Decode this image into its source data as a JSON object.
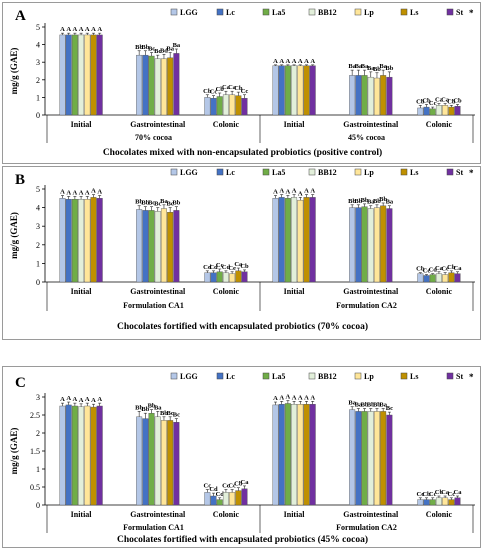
{
  "colors": {
    "LGG": "#b4c7e7",
    "Lc": "#4472c4",
    "La5": "#70ad47",
    "BB12": "#e2efda",
    "Lp": "#ffe699",
    "Ls": "#bf9000",
    "St": "#7030a0"
  },
  "chart_data": [
    {
      "type": "bar",
      "panel_letter": "A",
      "title": "Chocolates mixed with non-encapsulated probiotics (positive control)",
      "ylabel": "mg/g (GAE)",
      "ylim": [
        0,
        5
      ],
      "yticks": [
        "0",
        "1",
        "2",
        "3",
        "4",
        "5"
      ],
      "legend": [
        "LGG",
        "Lc",
        "La5",
        "BB12",
        "Lp",
        "Ls",
        "St"
      ],
      "legend_position": "top-right",
      "legend_marker": "*",
      "grid": false,
      "groups": [
        {
          "name": "70% cocoa",
          "subgroups": [
            {
              "name": "Initial",
              "values": [
                4.55,
                4.55,
                4.55,
                4.55,
                4.55,
                4.55,
                4.55
              ],
              "errors": [
                0.1,
                0.1,
                0.1,
                0.1,
                0.1,
                0.1,
                0.1
              ],
              "letters": [
                "A",
                "A",
                "A",
                "A",
                "A",
                "A",
                "A"
              ]
            },
            {
              "name": "Gastrointestinal",
              "values": [
                3.4,
                3.4,
                3.35,
                3.2,
                3.2,
                3.25,
                3.5
              ],
              "errors": [
                0.25,
                0.25,
                0.2,
                0.2,
                0.25,
                0.3,
                0.25
              ],
              "letters": [
                "Bb",
                "Bb",
                "Bc",
                "Bc",
                "Bd",
                "Ba",
                "Ba"
              ]
            },
            {
              "name": "Colonic",
              "values": [
                1.0,
                0.95,
                1.05,
                1.15,
                1.15,
                1.1,
                0.95
              ],
              "errors": [
                0.15,
                0.15,
                0.2,
                0.2,
                0.2,
                0.2,
                0.2
              ],
              "letters": [
                "Cb",
                "Cc",
                "Cb",
                "Ca",
                "Ca",
                "Cb",
                "Cc"
              ]
            }
          ]
        },
        {
          "name": "45% cocoa",
          "subgroups": [
            {
              "name": "Initial",
              "values": [
                2.8,
                2.8,
                2.8,
                2.8,
                2.8,
                2.8,
                2.8
              ],
              "errors": [
                0.05,
                0.05,
                0.05,
                0.05,
                0.05,
                0.05,
                0.05
              ],
              "letters": [
                "A",
                "A",
                "A",
                "A",
                "A",
                "A",
                "A"
              ]
            },
            {
              "name": "Gastrointestinal",
              "values": [
                2.25,
                2.25,
                2.25,
                2.15,
                2.1,
                2.25,
                2.15
              ],
              "errors": [
                0.3,
                0.3,
                0.3,
                0.3,
                0.3,
                0.3,
                0.3
              ],
              "letters": [
                "Ba",
                "Ba",
                "Ba",
                "Ba",
                "Bb",
                "Ba",
                "Bb"
              ]
            },
            {
              "name": "Colonic",
              "values": [
                0.4,
                0.45,
                0.35,
                0.55,
                0.55,
                0.45,
                0.5
              ],
              "errors": [
                0.15,
                0.15,
                0.1,
                0.1,
                0.1,
                0.1,
                0.1
              ],
              "letters": [
                "Cb",
                "Cb",
                "Cc",
                "Ca",
                "Ca",
                "Cb",
                "Cb"
              ]
            }
          ]
        }
      ]
    },
    {
      "type": "bar",
      "panel_letter": "B",
      "title": "Chocolates fortified with encapsulated probiotics (70% cocoa)",
      "ylabel": "mg/g (GAE)",
      "ylim": [
        0,
        5
      ],
      "yticks": [
        "0",
        "1",
        "2",
        "3",
        "4",
        "5"
      ],
      "legend": [
        "LGG",
        "Lc",
        "La5",
        "BB12",
        "Lp",
        "Ls",
        "St"
      ],
      "legend_position": "top-right",
      "legend_marker": "*",
      "grid": false,
      "groups": [
        {
          "name": "Formulation CA1",
          "subgroups": [
            {
              "name": "Initial",
              "values": [
                4.5,
                4.45,
                4.45,
                4.45,
                4.45,
                4.55,
                4.5
              ],
              "errors": [
                0.15,
                0.15,
                0.15,
                0.15,
                0.15,
                0.15,
                0.15
              ],
              "letters": [
                "A",
                "A",
                "A",
                "A",
                "A",
                "A",
                "A"
              ]
            },
            {
              "name": "Gastrointestinal",
              "values": [
                3.9,
                3.85,
                3.85,
                3.8,
                3.95,
                3.75,
                3.85
              ],
              "errors": [
                0.2,
                0.2,
                0.2,
                0.2,
                0.2,
                0.25,
                0.2
              ],
              "letters": [
                "Bb",
                "Bb",
                "Bc",
                "Bc",
                "Ba",
                "Bc",
                "Bb"
              ]
            },
            {
              "name": "Colonic",
              "values": [
                0.5,
                0.5,
                0.55,
                0.5,
                0.45,
                0.6,
                0.55
              ],
              "errors": [
                0.1,
                0.1,
                0.15,
                0.1,
                0.1,
                0.15,
                0.1
              ],
              "letters": [
                "Cd",
                "Cd",
                "Cc",
                "Cd",
                "Ce",
                "Ca",
                "Cb"
              ]
            }
          ]
        },
        {
          "name": "Formulation CA2",
          "subgroups": [
            {
              "name": "Initial",
              "values": [
                4.5,
                4.55,
                4.5,
                4.55,
                4.4,
                4.55,
                4.55
              ],
              "errors": [
                0.15,
                0.15,
                0.15,
                0.15,
                0.15,
                0.15,
                0.15
              ],
              "letters": [
                "A",
                "A",
                "A",
                "A",
                "A",
                "A",
                "A"
              ]
            },
            {
              "name": "Gastrointestinal",
              "values": [
                4.0,
                4.0,
                4.05,
                3.95,
                4.0,
                4.1,
                3.95
              ],
              "errors": [
                0.15,
                0.15,
                0.15,
                0.15,
                0.15,
                0.15,
                0.15
              ],
              "letters": [
                "Bb",
                "Bb",
                "Bb",
                "Ba",
                "Bb",
                "Bb",
                "Ba"
              ]
            },
            {
              "name": "Colonic",
              "values": [
                0.45,
                0.35,
                0.4,
                0.45,
                0.4,
                0.5,
                0.45
              ],
              "errors": [
                0.05,
                0.05,
                0.05,
                0.1,
                0.1,
                0.1,
                0.1
              ],
              "letters": [
                "Cb",
                "Cc",
                "Cd",
                "Ca",
                "Ce",
                "Cb",
                "Ca"
              ]
            }
          ]
        }
      ]
    },
    {
      "type": "bar",
      "panel_letter": "C",
      "title": "Chocolates fortified with encapsulated probiotics (45% cocoa)",
      "ylabel": "mg/g (GAE)",
      "ylim": [
        0,
        3
      ],
      "yticks": [
        "0",
        "0.5",
        "1",
        "1.5",
        "2",
        "2.5",
        "3"
      ],
      "legend": [
        "LGG",
        "Lc",
        "La5",
        "BB12",
        "Lp",
        "Ls",
        "St"
      ],
      "legend_position": "top-right",
      "legend_marker": "*",
      "grid": false,
      "groups": [
        {
          "name": "Formulation CA1",
          "subgroups": [
            {
              "name": "Initial",
              "values": [
                2.75,
                2.78,
                2.75,
                2.73,
                2.75,
                2.72,
                2.75
              ],
              "errors": [
                0.08,
                0.08,
                0.08,
                0.08,
                0.08,
                0.08,
                0.08
              ],
              "letters": [
                "A",
                "A",
                "A",
                "A",
                "A",
                "A",
                "A"
              ]
            },
            {
              "name": "Gastrointestinal",
              "values": [
                2.45,
                2.4,
                2.55,
                2.45,
                2.35,
                2.35,
                2.3
              ],
              "errors": [
                0.15,
                0.15,
                0.1,
                0.15,
                0.1,
                0.1,
                0.1
              ],
              "letters": [
                "Bb",
                "Bb",
                "Bb",
                "Ba",
                "Bb",
                "Bc",
                "Bc"
              ]
            },
            {
              "name": "Colonic",
              "values": [
                0.35,
                0.25,
                0.15,
                0.35,
                0.35,
                0.4,
                0.45
              ],
              "errors": [
                0.08,
                0.08,
                0.05,
                0.08,
                0.08,
                0.08,
                0.08
              ],
              "letters": [
                "Cc",
                "Cd",
                "Cd",
                "Cc",
                "Cc",
                "Cb",
                "Ca"
              ]
            }
          ]
        },
        {
          "name": "Formulation CA2",
          "subgroups": [
            {
              "name": "Initial",
              "values": [
                2.78,
                2.8,
                2.82,
                2.8,
                2.8,
                2.8,
                2.8
              ],
              "errors": [
                0.08,
                0.08,
                0.08,
                0.08,
                0.08,
                0.08,
                0.08
              ],
              "letters": [
                "A",
                "A",
                "A",
                "A",
                "A",
                "A",
                "A"
              ]
            },
            {
              "name": "Gastrointestinal",
              "values": [
                2.65,
                2.6,
                2.6,
                2.6,
                2.6,
                2.6,
                2.5
              ],
              "errors": [
                0.08,
                0.08,
                0.08,
                0.08,
                0.08,
                0.08,
                0.08
              ],
              "letters": [
                "Ba",
                "Ba",
                "Bb",
                "Bb",
                "Bb",
                "Ba",
                "Bc"
              ]
            },
            {
              "name": "Colonic",
              "values": [
                0.15,
                0.15,
                0.15,
                0.2,
                0.2,
                0.15,
                0.2
              ],
              "errors": [
                0.05,
                0.05,
                0.05,
                0.05,
                0.05,
                0.05,
                0.05
              ],
              "letters": [
                "Cc",
                "Cb",
                "Cc",
                "Cb",
                "Ca",
                "Cc",
                "Ca"
              ]
            }
          ]
        }
      ]
    }
  ]
}
